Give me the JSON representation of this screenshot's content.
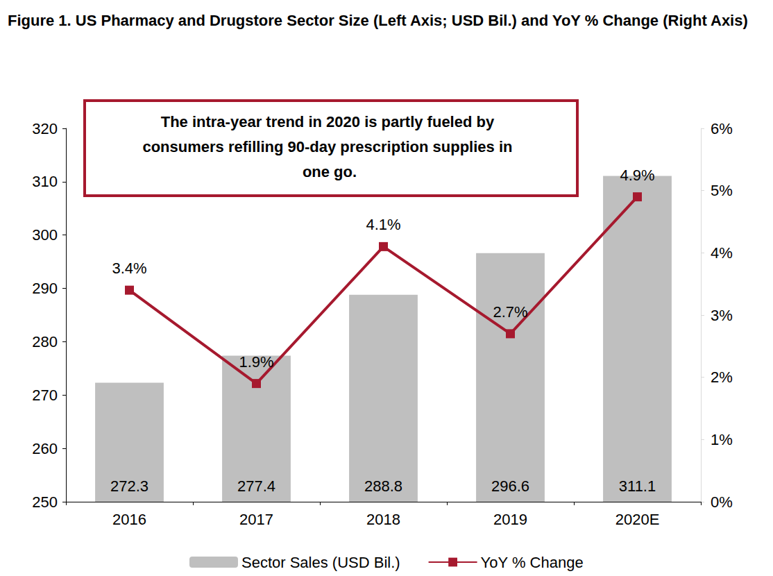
{
  "chart_data": {
    "type": "bar",
    "title": "Figure 1. US Pharmacy and Drugstore Sector Size (Left Axis; USD Bil.) and YoY % Change (Right Axis)",
    "annotations": [
      "The intra-year trend in 2020 is partly fueled by consumers refilling 90-day prescription supplies in one go."
    ],
    "categories": [
      "2016",
      "2017",
      "2018",
      "2019",
      "2020E"
    ],
    "series": [
      {
        "name": "Sector Sales (USD Bil.)",
        "type": "bar",
        "color": "#bfbfbf",
        "values": [
          272.3,
          277.4,
          288.8,
          296.6,
          311.1
        ],
        "data_labels": true
      },
      {
        "name": "YoY % Change",
        "type": "line",
        "axis": "y2",
        "color": "#a6192e",
        "marker": "square",
        "line_style": "solid",
        "values": [
          3.4,
          1.9,
          4.1,
          2.7,
          4.9
        ],
        "value_labels": [
          "3.4%",
          "1.9%",
          "4.1%",
          "2.7%",
          "4.9%"
        ],
        "data_labels": true
      }
    ],
    "ylim": [
      250,
      320
    ],
    "yticks": [
      250,
      260,
      270,
      280,
      290,
      300,
      310,
      320
    ],
    "y2lim": [
      0,
      6
    ],
    "y2ticks": [
      {
        "value": 0,
        "label": "0%"
      },
      {
        "value": 1,
        "label": "1%"
      },
      {
        "value": 2,
        "label": "2%"
      },
      {
        "value": 3,
        "label": "3%"
      },
      {
        "value": 4,
        "label": "4%"
      },
      {
        "value": 5,
        "label": "5%"
      },
      {
        "value": 6,
        "label": "6%"
      }
    ],
    "grid": false,
    "legend": "bottom"
  }
}
